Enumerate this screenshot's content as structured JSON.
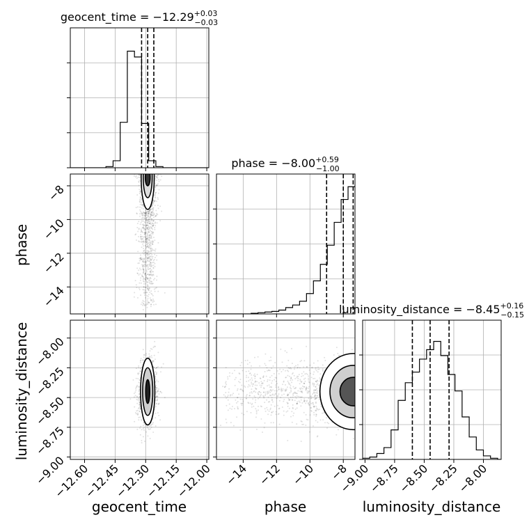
{
  "chart_data": {
    "type": "corner",
    "parameters": [
      "geocent_time",
      "phase",
      "luminosity_distance"
    ],
    "titles": [
      {
        "param": "geocent_time",
        "median": "−12.29",
        "plus": "+0.03",
        "minus": "−0.03"
      },
      {
        "param": "phase",
        "median": "−8.00",
        "plus": "+0.59",
        "minus": "−1.00"
      },
      {
        "param": "luminosity_distance",
        "median": "−8.45",
        "plus": "+0.16",
        "minus": "−0.15"
      }
    ],
    "ranges": {
      "geocent_time": [
        -12.67,
        -11.99
      ],
      "phase": [
        -15.6,
        -7.3
      ],
      "luminosity_distance": [
        -9.02,
        -7.85
      ]
    },
    "ticks": {
      "geocent_time": [
        -12.6,
        -12.45,
        -12.3,
        -12.15,
        -12.0
      ],
      "phase_x": [
        -14,
        -12,
        -10,
        -8
      ],
      "phase_y": [
        -8,
        -10,
        -12,
        -14
      ],
      "luminosity_distance_x": [
        -9.0,
        -8.75,
        -8.5,
        -8.25,
        -8.0
      ],
      "luminosity_distance_y": [
        -8.0,
        -8.25,
        -8.5,
        -8.75,
        -9.0
      ]
    },
    "tick_labels": {
      "geocent_time": [
        "−12.60",
        "−12.45",
        "−12.30",
        "−12.15",
        "−12.00"
      ],
      "phase_x": [
        "−14",
        "−12",
        "−10",
        "−8"
      ],
      "phase_y": [
        "−8",
        "−10",
        "−12",
        "−14"
      ],
      "luminosity_distance_x": [
        "−9.00",
        "−8.75",
        "−8.50",
        "−8.25",
        "−8.00"
      ],
      "luminosity_distance_y": [
        "−8.00",
        "−8.25",
        "−8.50",
        "−8.75",
        "−9.00"
      ]
    },
    "axis_labels": {
      "geocent_time": "geocent_time",
      "phase": "phase",
      "luminosity_distance": "luminosity_distance"
    },
    "quantiles": {
      "geocent_time": [
        -12.32,
        -12.29,
        -12.26
      ],
      "phase": [
        -9.0,
        -8.0,
        -7.41
      ],
      "luminosity_distance": [
        -8.6,
        -8.45,
        -8.29
      ]
    },
    "histograms": {
      "geocent_time": {
        "edges": [
          -12.67,
          -12.635,
          -12.6,
          -12.565,
          -12.53,
          -12.495,
          -12.46,
          -12.425,
          -12.39,
          -12.355,
          -12.32,
          -12.285,
          -12.25,
          -12.215,
          -12.18,
          -12.145,
          -12.11,
          -12.075,
          -12.04,
          -12.005,
          -11.99
        ],
        "counts": [
          0,
          0,
          0,
          0,
          0,
          0.01,
          0.06,
          0.39,
          1.0,
          0.95,
          0.38,
          0.06,
          0.01,
          0,
          0,
          0,
          0,
          0,
          0,
          0
        ]
      },
      "phase": {
        "edges": [
          -15.6,
          -15.185,
          -14.77,
          -14.355,
          -13.94,
          -13.525,
          -13.11,
          -12.695,
          -12.28,
          -11.865,
          -11.45,
          -11.035,
          -10.62,
          -10.205,
          -9.79,
          -9.375,
          -8.96,
          -8.545,
          -8.13,
          -7.715,
          -7.3
        ],
        "counts": [
          0,
          0,
          0,
          0,
          0,
          0.005,
          0.01,
          0.015,
          0.02,
          0.03,
          0.05,
          0.07,
          0.1,
          0.16,
          0.26,
          0.39,
          0.54,
          0.72,
          0.9,
          1.0
        ]
      },
      "luminosity_distance": {
        "edges": [
          -9.02,
          -8.96,
          -8.9,
          -8.84,
          -8.78,
          -8.72,
          -8.66,
          -8.6,
          -8.54,
          -8.48,
          -8.42,
          -8.36,
          -8.3,
          -8.24,
          -8.18,
          -8.12,
          -8.06,
          -8.0,
          -7.94,
          -7.88,
          -7.85
        ],
        "counts": [
          0.01,
          0.02,
          0.05,
          0.1,
          0.25,
          0.5,
          0.65,
          0.74,
          0.85,
          0.93,
          1.0,
          0.88,
          0.72,
          0.58,
          0.36,
          0.19,
          0.08,
          0.03,
          0.01,
          0
        ]
      }
    },
    "hist_ylim": {
      "geocent_time": [
        0,
        1.2
      ],
      "phase": [
        0,
        1.1
      ],
      "luminosity_distance": [
        0,
        1.18
      ]
    },
    "grid": true
  }
}
